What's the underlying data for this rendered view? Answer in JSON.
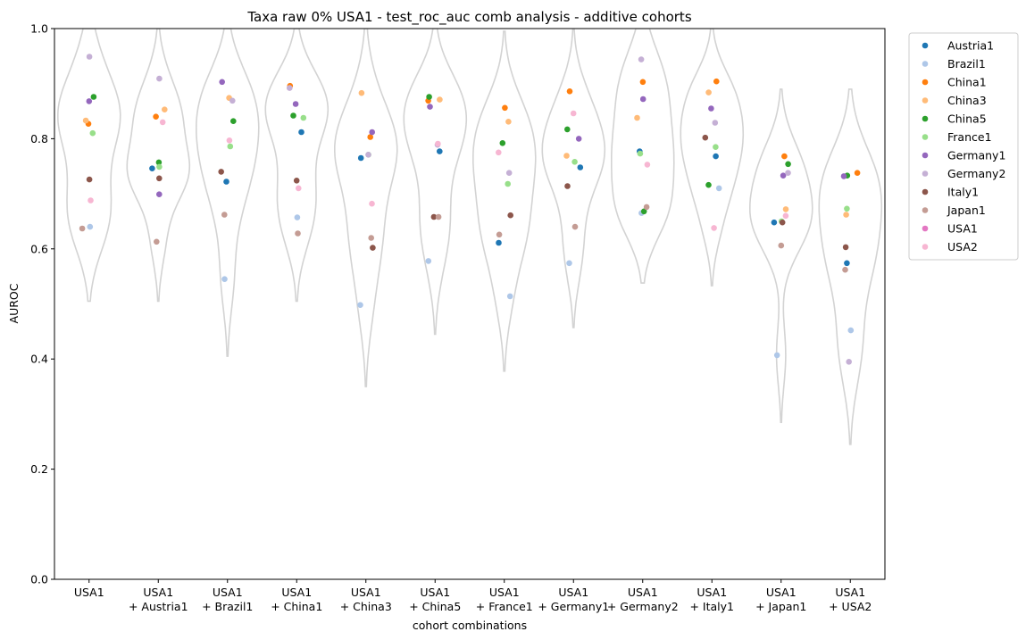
{
  "chart_data": {
    "type": "violin-strip",
    "title": "Taxa raw 0% USA1 - test_roc_auc comb analysis - additive cohorts",
    "xlabel": "cohort combinations",
    "ylabel": "AUROC",
    "ylim": [
      0,
      1.0
    ],
    "yticks": [
      "0.0",
      "0.2",
      "0.4",
      "0.6",
      "0.8",
      "1.0"
    ],
    "legend_position": "outside-top-right",
    "categories": [
      [
        "USA1"
      ],
      [
        "USA1",
        "+ Austria1"
      ],
      [
        "USA1",
        "+ Brazil1"
      ],
      [
        "USA1",
        "+ China1"
      ],
      [
        "USA1",
        "+ China3"
      ],
      [
        "USA1",
        "+ China5"
      ],
      [
        "USA1",
        "+ France1"
      ],
      [
        "USA1",
        "+ Germany1"
      ],
      [
        "USA1",
        "+ Germany2"
      ],
      [
        "USA1",
        "+ Italy1"
      ],
      [
        "USA1",
        "+ Japan1"
      ],
      [
        "USA1",
        "+ USA2"
      ]
    ],
    "violin_color": "#d3d3d3",
    "violin_range": [
      [
        0.505,
        1.0
      ],
      [
        0.505,
        1.0
      ],
      [
        0.405,
        1.0
      ],
      [
        0.505,
        1.0
      ],
      [
        0.35,
        1.0
      ],
      [
        0.445,
        1.0
      ],
      [
        0.378,
        0.995
      ],
      [
        0.457,
        1.0
      ],
      [
        0.538,
        1.0
      ],
      [
        0.533,
        1.0
      ],
      [
        0.285,
        0.89
      ],
      [
        0.245,
        0.89
      ]
    ],
    "series": [
      {
        "name": "Austria1",
        "color": "#1f77b4",
        "values": [
          null,
          0.746,
          0.722,
          0.812,
          0.765,
          0.777,
          0.611,
          0.748,
          0.777,
          0.768,
          0.648,
          0.574
        ]
      },
      {
        "name": "Brazil1",
        "color": "#aec7e8",
        "values": [
          0.64,
          null,
          0.545,
          0.657,
          0.498,
          0.578,
          0.514,
          0.574,
          0.665,
          0.71,
          0.407,
          0.452
        ]
      },
      {
        "name": "China1",
        "color": "#ff7f0e",
        "values": [
          0.827,
          0.84,
          null,
          0.896,
          0.803,
          0.869,
          0.856,
          0.886,
          0.903,
          0.904,
          0.768,
          0.738
        ]
      },
      {
        "name": "China3",
        "color": "#ffbb78",
        "values": [
          0.833,
          0.853,
          0.874,
          null,
          0.883,
          0.871,
          0.831,
          0.769,
          0.838,
          0.884,
          0.672,
          0.662
        ]
      },
      {
        "name": "China5",
        "color": "#2ca02c",
        "values": [
          0.876,
          0.757,
          0.832,
          0.842,
          null,
          0.876,
          0.792,
          0.817,
          0.668,
          0.716,
          0.754,
          0.733
        ]
      },
      {
        "name": "France1",
        "color": "#98df8a",
        "values": [
          0.81,
          0.749,
          0.786,
          0.838,
          0.771,
          null,
          0.718,
          0.758,
          0.773,
          0.785,
          0.65,
          0.673
        ]
      },
      {
        "name": "Germany1",
        "color": "#9467bd",
        "values": [
          0.868,
          0.699,
          0.903,
          0.863,
          0.812,
          0.858,
          null,
          0.8,
          0.872,
          0.855,
          0.733,
          0.732
        ]
      },
      {
        "name": "Germany2",
        "color": "#c5b0d5",
        "values": [
          0.949,
          0.909,
          0.869,
          0.892,
          0.771,
          0.789,
          0.738,
          null,
          0.944,
          0.829,
          0.738,
          0.395
        ]
      },
      {
        "name": "Italy1",
        "color": "#8c564b",
        "values": [
          0.726,
          0.728,
          0.74,
          0.724,
          0.602,
          0.658,
          0.661,
          0.714,
          null,
          0.802,
          0.648,
          0.603
        ]
      },
      {
        "name": "Japan1",
        "color": "#c49c94",
        "values": [
          0.637,
          0.613,
          0.662,
          0.628,
          0.62,
          0.658,
          0.626,
          0.64,
          0.676,
          null,
          0.606,
          0.562
        ]
      },
      {
        "name": "USA1",
        "color": "#e377c2",
        "values": [
          null,
          null,
          null,
          null,
          null,
          null,
          null,
          null,
          null,
          null,
          null,
          null
        ]
      },
      {
        "name": "USA2",
        "color": "#f7b6d2",
        "values": [
          0.688,
          0.83,
          0.797,
          0.71,
          0.682,
          0.791,
          0.775,
          0.846,
          0.753,
          0.638,
          0.66,
          null
        ]
      }
    ]
  }
}
